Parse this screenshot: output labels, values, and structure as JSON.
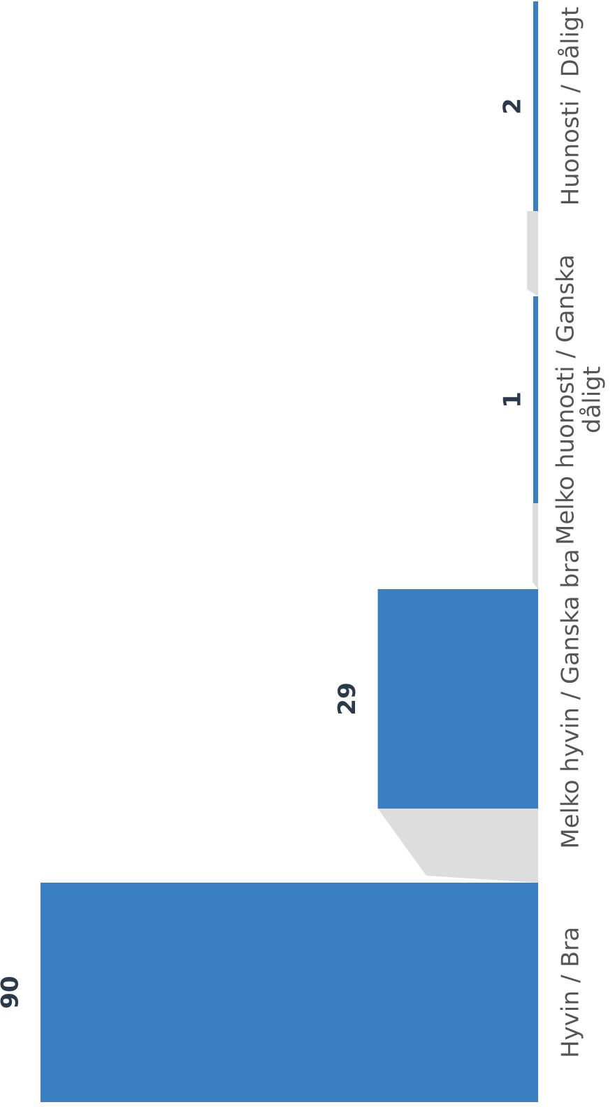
{
  "chart_data": {
    "type": "bar",
    "orientation": "rotated",
    "categories": [
      "Hyvin / Bra",
      "Melko hyvin / Ganska bra",
      "Melko huonosti / Ganska dåligt",
      "Huonosti / Dåligt"
    ],
    "category_lines": [
      [
        "Hyvin / Bra"
      ],
      [
        "Melko hyvin / Ganska bra"
      ],
      [
        "Melko huonosti / Ganska",
        "dåligt"
      ],
      [
        "Huonosti / Dåligt"
      ]
    ],
    "values": [
      90,
      29,
      1,
      2
    ],
    "value_labels": [
      "90",
      "29",
      "1",
      "2"
    ],
    "title": "",
    "xlabel": "",
    "ylabel": "",
    "ylim": [
      0,
      90
    ],
    "grid": false,
    "legend": "none",
    "bar_color": "#3a7fc2",
    "shadow_color": "#d9d9d9"
  }
}
